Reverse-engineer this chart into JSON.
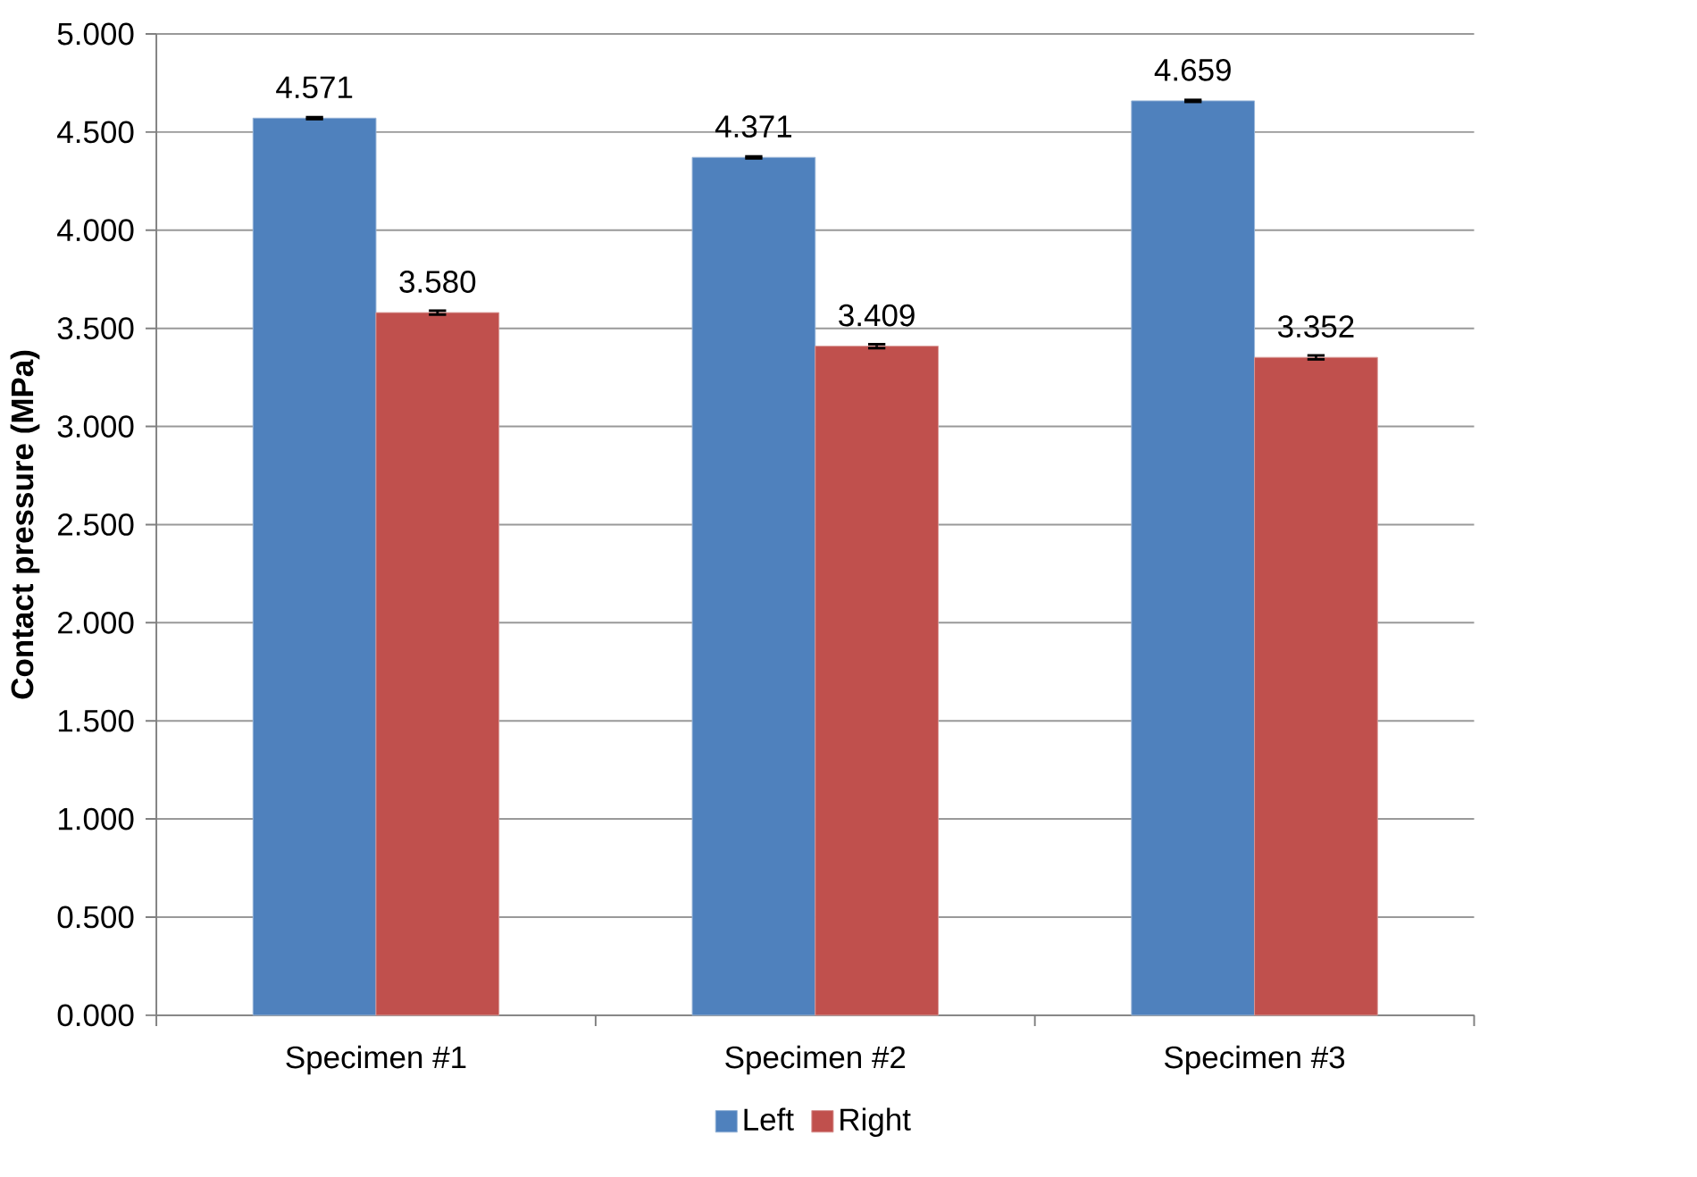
{
  "chart_data": {
    "type": "bar",
    "ylabel": "Contact pressure (MPa)",
    "categories": [
      "Specimen #1",
      "Specimen #2",
      "Specimen #3"
    ],
    "series": [
      {
        "name": "Left",
        "color": "#4f81bd",
        "values": [
          4.571,
          4.371,
          4.659
        ],
        "errors": [
          0.005,
          0.005,
          0.005
        ],
        "value_labels": [
          "4.571",
          "4.371",
          "4.659"
        ]
      },
      {
        "name": "Right",
        "color": "#c0504d",
        "values": [
          3.58,
          3.409,
          3.352
        ],
        "errors": [
          0.01,
          0.01,
          0.01
        ],
        "value_labels": [
          "3.580",
          "3.409",
          "3.352"
        ]
      }
    ],
    "ylim": [
      0,
      5
    ],
    "yticks": [
      {
        "value": 0,
        "label": "0.000"
      },
      {
        "value": 0.5,
        "label": "0.500"
      },
      {
        "value": 1,
        "label": "1.000"
      },
      {
        "value": 1.5,
        "label": "1.500"
      },
      {
        "value": 2,
        "label": "2.000"
      },
      {
        "value": 2.5,
        "label": "2.500"
      },
      {
        "value": 3,
        "label": "3.000"
      },
      {
        "value": 3.5,
        "label": "3.500"
      },
      {
        "value": 4,
        "label": "4.000"
      },
      {
        "value": 4.5,
        "label": "4.500"
      },
      {
        "value": 5,
        "label": "5.000"
      }
    ],
    "grid": "y",
    "legend": "bottom"
  }
}
